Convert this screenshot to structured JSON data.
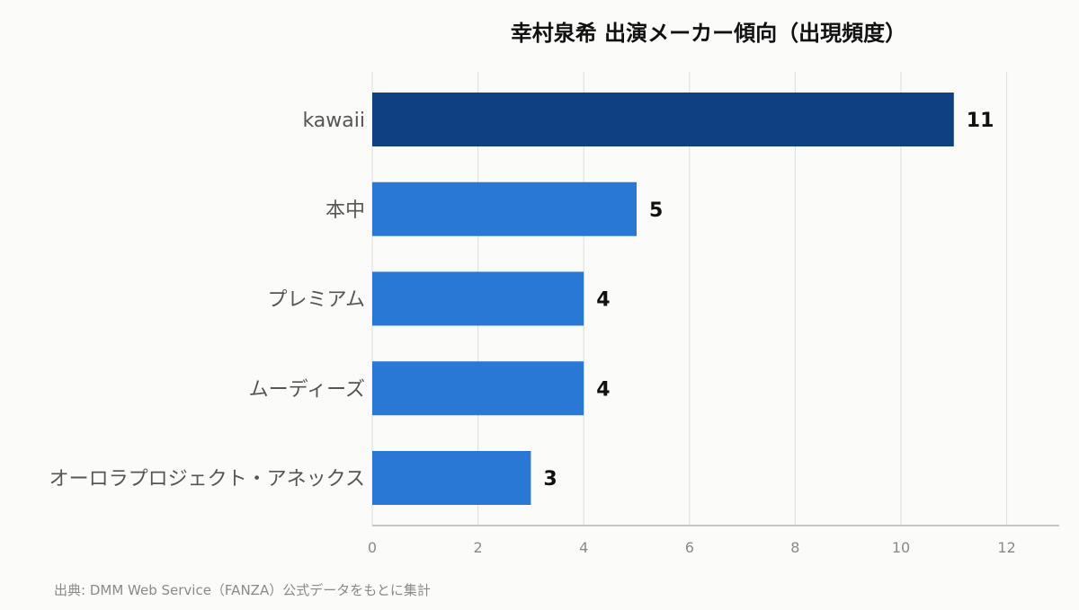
{
  "chart_data": {
    "type": "bar",
    "orientation": "horizontal",
    "title": "幸村泉希 出演メーカー傾向（出現頻度）",
    "categories": [
      "kawaii",
      "本中",
      "プレミアム",
      "ムーディーズ",
      "オーロラプロジェクト・アネックス"
    ],
    "values": [
      11,
      5,
      4,
      4,
      3
    ],
    "xlim": [
      0,
      13
    ],
    "xticks": [
      0,
      2,
      4,
      6,
      8,
      10,
      12
    ],
    "grid": true,
    "legend": "none",
    "highlight_color": "#0f4182",
    "bar_color": "#2a78d6"
  },
  "source_note": "出典: DMM Web Service（FANZA）公式データをもとに集計"
}
